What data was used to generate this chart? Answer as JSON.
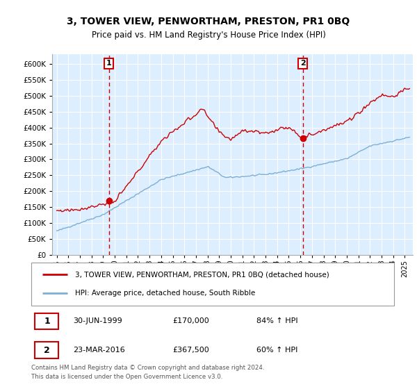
{
  "title": "3, TOWER VIEW, PENWORTHAM, PRESTON, PR1 0BQ",
  "subtitle": "Price paid vs. HM Land Registry's House Price Index (HPI)",
  "property_label": "3, TOWER VIEW, PENWORTHAM, PRESTON, PR1 0BQ (detached house)",
  "hpi_label": "HPI: Average price, detached house, South Ribble",
  "sale1_date": "30-JUN-1999",
  "sale1_price": "£170,000",
  "sale1_hpi": "84% ↑ HPI",
  "sale1_year": 1999.5,
  "sale1_value": 170000,
  "sale2_date": "23-MAR-2016",
  "sale2_price": "£367,500",
  "sale2_hpi": "60% ↑ HPI",
  "sale2_year": 2016.22,
  "sale2_value": 367500,
  "property_color": "#cc0000",
  "hpi_color": "#7bafd4",
  "bg_fill_color": "#ddeeff",
  "vline_color": "#cc0000",
  "annotation_box_color": "#cc0000",
  "footer": "Contains HM Land Registry data © Crown copyright and database right 2024.\nThis data is licensed under the Open Government Licence v3.0.",
  "ylim": [
    0,
    630000
  ],
  "ytick_values": [
    0,
    50000,
    100000,
    150000,
    200000,
    250000,
    300000,
    350000,
    400000,
    450000,
    500000,
    550000,
    600000
  ],
  "ytick_labels": [
    "£0",
    "£50K",
    "£100K",
    "£150K",
    "£200K",
    "£250K",
    "£300K",
    "£350K",
    "£400K",
    "£450K",
    "£500K",
    "£550K",
    "£600K"
  ],
  "xlim_start": 1994.6,
  "xlim_end": 2025.7
}
